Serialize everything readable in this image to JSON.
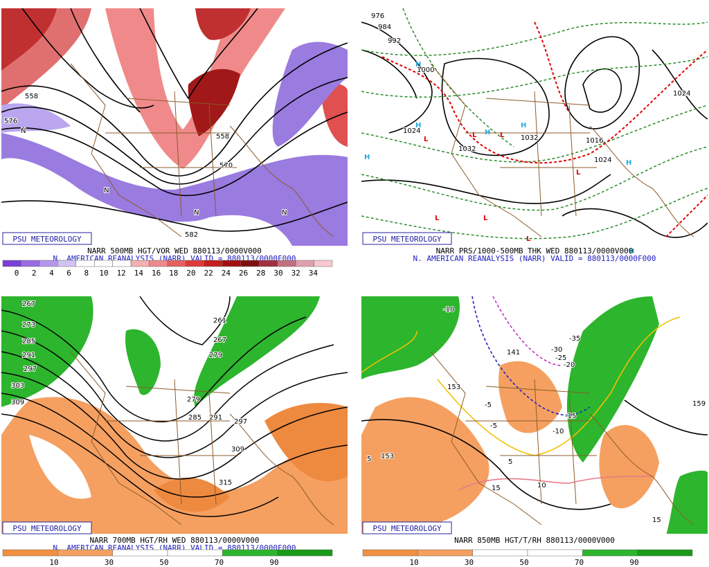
{
  "panels": [
    {
      "title": "NARR 500MB HGT/VOR WED 880113/0000V000",
      "subtitle": "N. AMERICAN REANALYSIS (NARR) VALID = 880113/0000F000",
      "brand": "PSU METEOROLOGY",
      "colorbar": [
        0,
        2,
        4,
        6,
        8,
        10,
        12,
        14,
        16,
        18,
        20,
        22,
        24,
        26,
        28,
        30,
        32,
        34
      ],
      "labels": [
        "558",
        "576",
        "558",
        "570",
        "582",
        "N",
        "N",
        "N",
        "N"
      ]
    },
    {
      "title": "NARR PRS/1000-500MB THK WED 880113/0000V000",
      "subtitle": "N. AMERICAN REANALYSIS (NARR) VALID = 880113/0000F000",
      "brand": "PSU METEOROLOGY",
      "labels": [
        "976",
        "984",
        "992",
        "1000",
        "1024",
        "1032",
        "1032",
        "1016",
        "1024",
        "1024",
        "H",
        "H",
        "H",
        "H",
        "H",
        "H",
        "H",
        "L",
        "L",
        "L",
        "L",
        "L",
        "L",
        "L"
      ]
    },
    {
      "title": "NARR 700MB HGT/RH WED 880113/0000V000",
      "subtitle": "N. AMERICAN REANALYSIS (NARR) VALID = 880113/0000F000",
      "brand": "PSU METEOROLOGY",
      "colorbar": [
        10,
        30,
        50,
        70,
        90
      ],
      "labels": [
        "267",
        "273",
        "285",
        "291",
        "297",
        "303",
        "309",
        "261",
        "267",
        "279",
        "279",
        "285",
        "291",
        "297",
        "309",
        "315"
      ]
    },
    {
      "title": "NARR 850MB HGT/T/RH 880113/0000V000",
      "brand": "PSU METEOROLOGY",
      "colorbar": [
        10,
        30,
        50,
        70,
        90
      ],
      "labels": [
        "-10",
        "-35",
        "-30",
        "-25",
        "-20",
        "-5",
        "-5",
        "-15",
        "-10",
        "5",
        "5",
        "15",
        "10",
        "153",
        "153",
        "141",
        "15",
        "159"
      ]
    }
  ]
}
